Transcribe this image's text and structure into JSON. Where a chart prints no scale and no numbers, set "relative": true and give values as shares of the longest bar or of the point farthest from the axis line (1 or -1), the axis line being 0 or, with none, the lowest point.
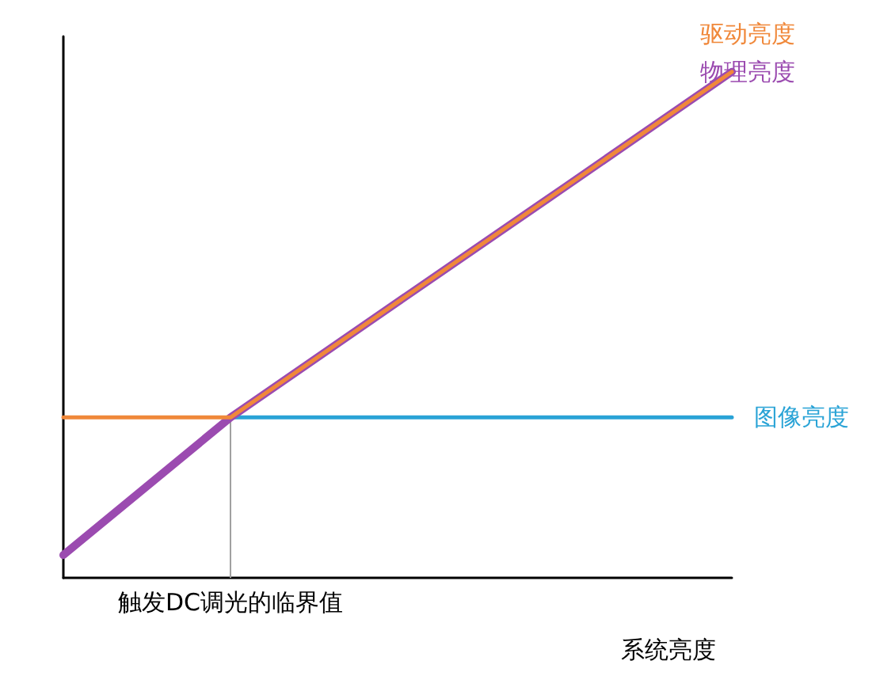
{
  "chart_data": {
    "type": "line",
    "relative": true,
    "xlabel": "系统亮度",
    "categories": [
      null,
      null,
      null,
      null,
      null
    ],
    "grid": false,
    "legend": false,
    "marker": "none",
    "line_style": "solid",
    "series": [
      {
        "name": "驱动亮度",
        "color": "#f0883a",
        "values": [
          0.317,
          0.317,
          0.545,
          0.772,
          1
        ]
      },
      {
        "name": "物理亮度",
        "color": "#9b4bb0",
        "values": [
          0.045,
          0.317,
          0.545,
          0.772,
          1
        ]
      },
      {
        "name": "图像亮度",
        "color": "#29a3d6",
        "values": [
          0.045,
          0.317,
          0.317,
          0.317,
          0.317
        ]
      }
    ],
    "annotations": [
      {
        "text": "触发DC调光的临界值",
        "y": 0.317
      }
    ]
  }
}
